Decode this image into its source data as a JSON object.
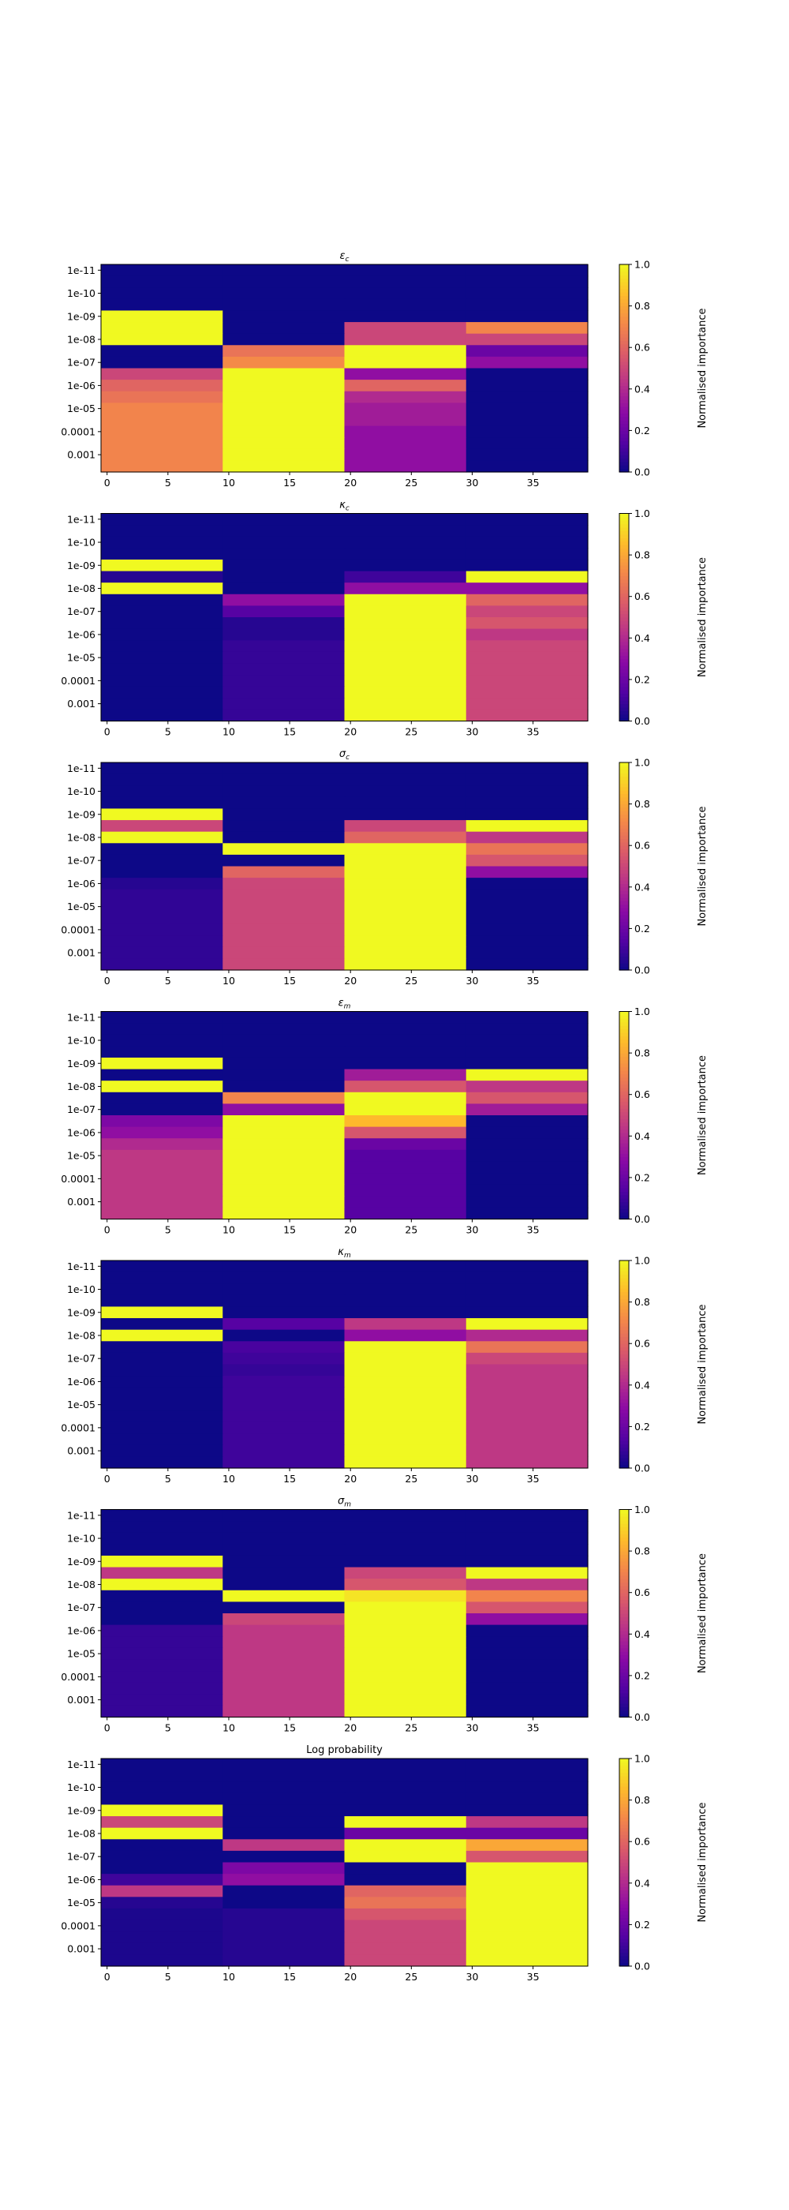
{
  "colormap": "plasma",
  "chart_data": [
    {
      "type": "heatmap",
      "title": "ε_c",
      "title_main": "ε",
      "title_sub": "c",
      "x_ticks": [
        0,
        5,
        10,
        15,
        20,
        25,
        30,
        35
      ],
      "xlim": [
        0,
        39
      ],
      "y_ticks": [
        "1e-11",
        "1e-10",
        "1e-09",
        "1e-08",
        "1e-07",
        "1e-06",
        "1e-05",
        "0.0001",
        "0.001"
      ],
      "rows_per_decade": 2,
      "column_blocks": [
        [
          0,
          9
        ],
        [
          10,
          19
        ],
        [
          20,
          29
        ],
        [
          30,
          39
        ]
      ],
      "colorbar": {
        "label": "Normalised importance",
        "ticks": [
          "0.0",
          "0.2",
          "0.4",
          "0.6",
          "0.8",
          "1.0"
        ],
        "range": [
          0,
          1
        ]
      },
      "values": [
        [
          0.0,
          0.0,
          0.0,
          0.0
        ],
        [
          0.0,
          0.0,
          0.0,
          0.0
        ],
        [
          0.0,
          0.0,
          0.0,
          0.0
        ],
        [
          0.0,
          0.0,
          0.0,
          0.0
        ],
        [
          1.0,
          0.0,
          0.0,
          0.0
        ],
        [
          1.0,
          0.0,
          0.5,
          0.7
        ],
        [
          1.0,
          0.0,
          0.5,
          0.5
        ],
        [
          0.0,
          0.65,
          1.0,
          0.2
        ],
        [
          0.0,
          0.72,
          1.0,
          0.3
        ],
        [
          0.5,
          1.0,
          0.3,
          0.0
        ],
        [
          0.6,
          1.0,
          0.6,
          0.0
        ],
        [
          0.65,
          1.0,
          0.4,
          0.0
        ],
        [
          0.7,
          1.0,
          0.35,
          0.0
        ],
        [
          0.7,
          1.0,
          0.35,
          0.0
        ],
        [
          0.7,
          1.0,
          0.3,
          0.0
        ],
        [
          0.7,
          1.0,
          0.3,
          0.0
        ],
        [
          0.7,
          1.0,
          0.3,
          0.0
        ],
        [
          0.7,
          1.0,
          0.3,
          0.0
        ]
      ]
    },
    {
      "type": "heatmap",
      "title": "κ_c",
      "title_main": "κ",
      "title_sub": "c",
      "x_ticks": [
        0,
        5,
        10,
        15,
        20,
        25,
        30,
        35
      ],
      "xlim": [
        0,
        39
      ],
      "y_ticks": [
        "1e-11",
        "1e-10",
        "1e-09",
        "1e-08",
        "1e-07",
        "1e-06",
        "1e-05",
        "0.0001",
        "0.001"
      ],
      "rows_per_decade": 2,
      "column_blocks": [
        [
          0,
          9
        ],
        [
          10,
          19
        ],
        [
          20,
          29
        ],
        [
          30,
          39
        ]
      ],
      "colorbar": {
        "label": "Normalised importance",
        "ticks": [
          "0.0",
          "0.2",
          "0.4",
          "0.6",
          "0.8",
          "1.0"
        ],
        "range": [
          0,
          1
        ]
      },
      "values": [
        [
          0.0,
          0.0,
          0.0,
          0.0
        ],
        [
          0.0,
          0.0,
          0.0,
          0.0
        ],
        [
          0.0,
          0.0,
          0.0,
          0.0
        ],
        [
          0.0,
          0.0,
          0.0,
          0.0
        ],
        [
          1.0,
          0.0,
          0.0,
          0.0
        ],
        [
          0.05,
          0.0,
          0.1,
          1.0
        ],
        [
          1.0,
          0.0,
          0.3,
          0.3
        ],
        [
          0.0,
          0.3,
          1.0,
          0.6
        ],
        [
          0.0,
          0.15,
          1.0,
          0.5
        ],
        [
          0.0,
          0.05,
          1.0,
          0.55
        ],
        [
          0.0,
          0.05,
          1.0,
          0.45
        ],
        [
          0.0,
          0.08,
          1.0,
          0.5
        ],
        [
          0.0,
          0.08,
          1.0,
          0.5
        ],
        [
          0.0,
          0.08,
          1.0,
          0.5
        ],
        [
          0.0,
          0.08,
          1.0,
          0.5
        ],
        [
          0.0,
          0.08,
          1.0,
          0.5
        ],
        [
          0.0,
          0.08,
          1.0,
          0.5
        ],
        [
          0.0,
          0.08,
          1.0,
          0.5
        ]
      ]
    },
    {
      "type": "heatmap",
      "title": "σ_c",
      "title_main": "σ",
      "title_sub": "c",
      "x_ticks": [
        0,
        5,
        10,
        15,
        20,
        25,
        30,
        35
      ],
      "xlim": [
        0,
        39
      ],
      "y_ticks": [
        "1e-11",
        "1e-10",
        "1e-09",
        "1e-08",
        "1e-07",
        "1e-06",
        "1e-05",
        "0.0001",
        "0.001"
      ],
      "rows_per_decade": 2,
      "column_blocks": [
        [
          0,
          9
        ],
        [
          10,
          19
        ],
        [
          20,
          29
        ],
        [
          30,
          39
        ]
      ],
      "colorbar": {
        "label": "Normalised importance",
        "ticks": [
          "0.0",
          "0.2",
          "0.4",
          "0.6",
          "0.8",
          "1.0"
        ],
        "range": [
          0,
          1
        ]
      },
      "values": [
        [
          0.0,
          0.0,
          0.0,
          0.0
        ],
        [
          0.0,
          0.0,
          0.0,
          0.0
        ],
        [
          0.0,
          0.0,
          0.0,
          0.0
        ],
        [
          0.0,
          0.0,
          0.0,
          0.0
        ],
        [
          1.0,
          0.0,
          0.0,
          0.0
        ],
        [
          0.5,
          0.0,
          0.5,
          1.0
        ],
        [
          1.0,
          0.0,
          0.6,
          0.45
        ],
        [
          0.0,
          1.0,
          1.0,
          0.65
        ],
        [
          0.0,
          0.0,
          1.0,
          0.55
        ],
        [
          0.0,
          0.6,
          1.0,
          0.3
        ],
        [
          0.05,
          0.5,
          1.0,
          0.0
        ],
        [
          0.07,
          0.5,
          1.0,
          0.0
        ],
        [
          0.07,
          0.5,
          1.0,
          0.0
        ],
        [
          0.07,
          0.5,
          1.0,
          0.0
        ],
        [
          0.07,
          0.5,
          1.0,
          0.0
        ],
        [
          0.07,
          0.5,
          1.0,
          0.0
        ],
        [
          0.07,
          0.5,
          1.0,
          0.0
        ],
        [
          0.07,
          0.5,
          1.0,
          0.0
        ]
      ]
    },
    {
      "type": "heatmap",
      "title": "ε_m",
      "title_main": "ε",
      "title_sub": "m",
      "x_ticks": [
        0,
        5,
        10,
        15,
        20,
        25,
        30,
        35
      ],
      "xlim": [
        0,
        39
      ],
      "y_ticks": [
        "1e-11",
        "1e-10",
        "1e-09",
        "1e-08",
        "1e-07",
        "1e-06",
        "1e-05",
        "0.0001",
        "0.001"
      ],
      "rows_per_decade": 2,
      "column_blocks": [
        [
          0,
          9
        ],
        [
          10,
          19
        ],
        [
          20,
          29
        ],
        [
          30,
          39
        ]
      ],
      "colorbar": {
        "label": "Normalised importance",
        "ticks": [
          "0.0",
          "0.2",
          "0.4",
          "0.6",
          "0.8",
          "1.0"
        ],
        "range": [
          0,
          1
        ]
      },
      "values": [
        [
          0.0,
          0.0,
          0.0,
          0.0
        ],
        [
          0.0,
          0.0,
          0.0,
          0.0
        ],
        [
          0.0,
          0.0,
          0.0,
          0.0
        ],
        [
          0.0,
          0.0,
          0.0,
          0.0
        ],
        [
          1.0,
          0.0,
          0.0,
          0.0
        ],
        [
          0.0,
          0.0,
          0.35,
          1.0
        ],
        [
          1.0,
          0.0,
          0.55,
          0.45
        ],
        [
          0.0,
          0.7,
          1.0,
          0.55
        ],
        [
          0.0,
          0.3,
          1.0,
          0.35
        ],
        [
          0.25,
          1.0,
          0.85,
          0.0
        ],
        [
          0.3,
          1.0,
          0.55,
          0.0
        ],
        [
          0.4,
          1.0,
          0.2,
          0.0
        ],
        [
          0.45,
          1.0,
          0.15,
          0.0
        ],
        [
          0.45,
          1.0,
          0.15,
          0.0
        ],
        [
          0.45,
          1.0,
          0.15,
          0.0
        ],
        [
          0.45,
          1.0,
          0.15,
          0.0
        ],
        [
          0.45,
          1.0,
          0.15,
          0.0
        ],
        [
          0.45,
          1.0,
          0.15,
          0.0
        ]
      ]
    },
    {
      "type": "heatmap",
      "title": "κ_m",
      "title_main": "κ",
      "title_sub": "m",
      "x_ticks": [
        0,
        5,
        10,
        15,
        20,
        25,
        30,
        35
      ],
      "xlim": [
        0,
        39
      ],
      "y_ticks": [
        "1e-11",
        "1e-10",
        "1e-09",
        "1e-08",
        "1e-07",
        "1e-06",
        "1e-05",
        "0.0001",
        "0.001"
      ],
      "rows_per_decade": 2,
      "column_blocks": [
        [
          0,
          9
        ],
        [
          10,
          19
        ],
        [
          20,
          29
        ],
        [
          30,
          39
        ]
      ],
      "colorbar": {
        "label": "Normalised importance",
        "ticks": [
          "0.0",
          "0.2",
          "0.4",
          "0.6",
          "0.8",
          "1.0"
        ],
        "range": [
          0,
          1
        ]
      },
      "values": [
        [
          0.0,
          0.0,
          0.0,
          0.0
        ],
        [
          0.0,
          0.0,
          0.0,
          0.0
        ],
        [
          0.0,
          0.0,
          0.0,
          0.0
        ],
        [
          0.0,
          0.0,
          0.0,
          0.0
        ],
        [
          1.0,
          0.0,
          0.0,
          0.0
        ],
        [
          0.0,
          0.15,
          0.45,
          1.0
        ],
        [
          1.0,
          0.0,
          0.3,
          0.4
        ],
        [
          0.0,
          0.12,
          1.0,
          0.65
        ],
        [
          0.0,
          0.1,
          1.0,
          0.5
        ],
        [
          0.0,
          0.08,
          1.0,
          0.45
        ],
        [
          0.0,
          0.1,
          1.0,
          0.45
        ],
        [
          0.0,
          0.1,
          1.0,
          0.45
        ],
        [
          0.0,
          0.1,
          1.0,
          0.45
        ],
        [
          0.0,
          0.1,
          1.0,
          0.45
        ],
        [
          0.0,
          0.1,
          1.0,
          0.45
        ],
        [
          0.0,
          0.1,
          1.0,
          0.45
        ],
        [
          0.0,
          0.1,
          1.0,
          0.45
        ],
        [
          0.0,
          0.1,
          1.0,
          0.45
        ]
      ]
    },
    {
      "type": "heatmap",
      "title": "σ_m",
      "title_main": "σ",
      "title_sub": "m",
      "x_ticks": [
        0,
        5,
        10,
        15,
        20,
        25,
        30,
        35
      ],
      "xlim": [
        0,
        39
      ],
      "y_ticks": [
        "1e-11",
        "1e-10",
        "1e-09",
        "1e-08",
        "1e-07",
        "1e-06",
        "1e-05",
        "0.0001",
        "0.001"
      ],
      "rows_per_decade": 2,
      "column_blocks": [
        [
          0,
          9
        ],
        [
          10,
          19
        ],
        [
          20,
          29
        ],
        [
          30,
          39
        ]
      ],
      "colorbar": {
        "label": "Normalised importance",
        "ticks": [
          "0.0",
          "0.2",
          "0.4",
          "0.6",
          "0.8",
          "1.0"
        ],
        "range": [
          0,
          1
        ]
      },
      "values": [
        [
          0.0,
          0.0,
          0.0,
          0.0
        ],
        [
          0.0,
          0.0,
          0.0,
          0.0
        ],
        [
          0.0,
          0.0,
          0.0,
          0.0
        ],
        [
          0.0,
          0.0,
          0.0,
          0.0
        ],
        [
          1.0,
          0.0,
          0.0,
          0.0
        ],
        [
          0.45,
          0.0,
          0.5,
          1.0
        ],
        [
          1.0,
          0.0,
          0.55,
          0.45
        ],
        [
          0.0,
          1.0,
          0.95,
          0.7
        ],
        [
          0.0,
          0.0,
          1.0,
          0.55
        ],
        [
          0.0,
          0.5,
          1.0,
          0.3
        ],
        [
          0.08,
          0.45,
          1.0,
          0.0
        ],
        [
          0.08,
          0.45,
          1.0,
          0.0
        ],
        [
          0.08,
          0.45,
          1.0,
          0.0
        ],
        [
          0.08,
          0.45,
          1.0,
          0.0
        ],
        [
          0.08,
          0.45,
          1.0,
          0.0
        ],
        [
          0.08,
          0.45,
          1.0,
          0.0
        ],
        [
          0.08,
          0.45,
          1.0,
          0.0
        ],
        [
          0.08,
          0.45,
          1.0,
          0.0
        ]
      ]
    },
    {
      "type": "heatmap",
      "title": "Log probability",
      "title_main": "Log probability",
      "title_sub": "",
      "x_ticks": [
        0,
        5,
        10,
        15,
        20,
        25,
        30,
        35
      ],
      "xlim": [
        0,
        39
      ],
      "y_ticks": [
        "1e-11",
        "1e-10",
        "1e-09",
        "1e-08",
        "1e-07",
        "1e-06",
        "1e-05",
        "0.0001",
        "0.001"
      ],
      "rows_per_decade": 2,
      "column_blocks": [
        [
          0,
          9
        ],
        [
          10,
          19
        ],
        [
          20,
          29
        ],
        [
          30,
          39
        ]
      ],
      "colorbar": {
        "label": "Normalised importance",
        "ticks": [
          "0.0",
          "0.2",
          "0.4",
          "0.6",
          "0.8",
          "1.0"
        ],
        "range": [
          0,
          1
        ]
      },
      "values": [
        [
          0.0,
          0.0,
          0.0,
          0.0
        ],
        [
          0.0,
          0.0,
          0.0,
          0.0
        ],
        [
          0.0,
          0.0,
          0.0,
          0.0
        ],
        [
          0.0,
          0.0,
          0.0,
          0.0
        ],
        [
          1.0,
          0.0,
          0.0,
          0.0
        ],
        [
          0.5,
          0.0,
          1.0,
          0.45
        ],
        [
          1.0,
          0.0,
          0.2,
          0.2
        ],
        [
          0.0,
          0.45,
          1.0,
          0.8
        ],
        [
          0.0,
          0.0,
          1.0,
          0.55
        ],
        [
          0.0,
          0.25,
          0.0,
          1.0
        ],
        [
          0.1,
          0.3,
          0.0,
          1.0
        ],
        [
          0.45,
          0.0,
          0.6,
          1.0
        ],
        [
          0.05,
          0.0,
          0.65,
          1.0
        ],
        [
          0.03,
          0.05,
          0.55,
          1.0
        ],
        [
          0.03,
          0.05,
          0.5,
          1.0
        ],
        [
          0.03,
          0.05,
          0.5,
          1.0
        ],
        [
          0.03,
          0.05,
          0.5,
          1.0
        ],
        [
          0.03,
          0.05,
          0.5,
          1.0
        ]
      ]
    }
  ]
}
